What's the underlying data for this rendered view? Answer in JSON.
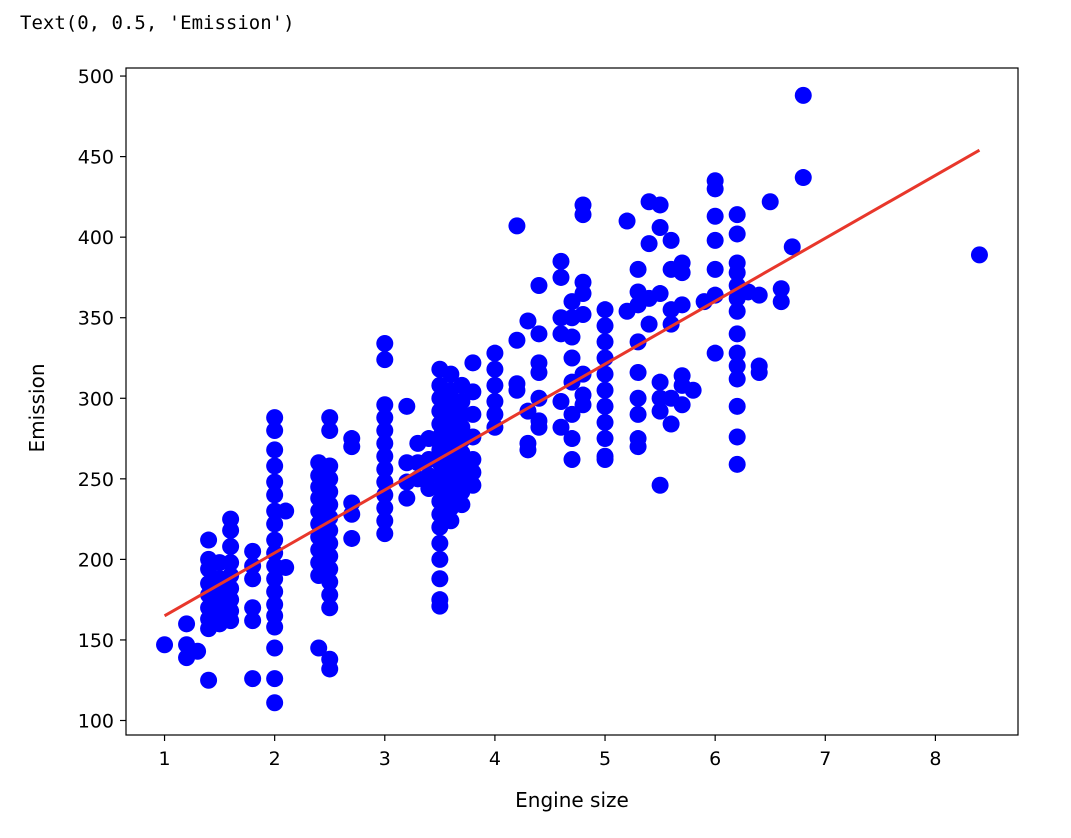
{
  "output_text": "Text(0, 0.5, 'Emission')",
  "chart_data": {
    "type": "scatter",
    "xlabel": "Engine size",
    "ylabel": "Emission",
    "xlim": [
      0.65,
      8.75
    ],
    "ylim": [
      91,
      505
    ],
    "xticks": [
      1,
      2,
      3,
      4,
      5,
      6,
      7,
      8
    ],
    "yticks": [
      100,
      150,
      200,
      250,
      300,
      350,
      400,
      450,
      500
    ],
    "colors": {
      "points": "#0000ff",
      "fit_line": "#e8372b"
    },
    "fit_line": {
      "x": [
        1.0,
        8.4
      ],
      "y": [
        165,
        454
      ]
    },
    "points": [
      [
        1.0,
        147
      ],
      [
        1.2,
        160
      ],
      [
        1.2,
        147
      ],
      [
        1.2,
        139
      ],
      [
        1.3,
        143
      ],
      [
        1.4,
        212
      ],
      [
        1.4,
        200
      ],
      [
        1.4,
        194
      ],
      [
        1.4,
        185
      ],
      [
        1.4,
        178
      ],
      [
        1.4,
        170
      ],
      [
        1.4,
        163
      ],
      [
        1.4,
        157
      ],
      [
        1.4,
        125
      ],
      [
        1.5,
        198
      ],
      [
        1.5,
        188
      ],
      [
        1.5,
        180
      ],
      [
        1.5,
        172
      ],
      [
        1.5,
        165
      ],
      [
        1.5,
        160
      ],
      [
        1.6,
        225
      ],
      [
        1.6,
        218
      ],
      [
        1.6,
        208
      ],
      [
        1.6,
        198
      ],
      [
        1.6,
        190
      ],
      [
        1.6,
        182
      ],
      [
        1.6,
        175
      ],
      [
        1.6,
        168
      ],
      [
        1.6,
        162
      ],
      [
        1.8,
        205
      ],
      [
        1.8,
        196
      ],
      [
        1.8,
        188
      ],
      [
        1.8,
        170
      ],
      [
        1.8,
        162
      ],
      [
        1.8,
        126
      ],
      [
        2.0,
        288
      ],
      [
        2.0,
        280
      ],
      [
        2.0,
        268
      ],
      [
        2.0,
        258
      ],
      [
        2.0,
        248
      ],
      [
        2.0,
        240
      ],
      [
        2.0,
        230
      ],
      [
        2.0,
        222
      ],
      [
        2.0,
        212
      ],
      [
        2.0,
        204
      ],
      [
        2.0,
        196
      ],
      [
        2.0,
        188
      ],
      [
        2.0,
        180
      ],
      [
        2.0,
        172
      ],
      [
        2.0,
        165
      ],
      [
        2.0,
        158
      ],
      [
        2.0,
        145
      ],
      [
        2.0,
        126
      ],
      [
        2.0,
        111
      ],
      [
        2.1,
        230
      ],
      [
        2.1,
        195
      ],
      [
        2.4,
        260
      ],
      [
        2.4,
        252
      ],
      [
        2.4,
        245
      ],
      [
        2.4,
        238
      ],
      [
        2.4,
        230
      ],
      [
        2.4,
        222
      ],
      [
        2.4,
        214
      ],
      [
        2.4,
        206
      ],
      [
        2.4,
        198
      ],
      [
        2.4,
        190
      ],
      [
        2.4,
        145
      ],
      [
        2.5,
        288
      ],
      [
        2.5,
        280
      ],
      [
        2.5,
        258
      ],
      [
        2.5,
        250
      ],
      [
        2.5,
        242
      ],
      [
        2.5,
        234
      ],
      [
        2.5,
        226
      ],
      [
        2.5,
        218
      ],
      [
        2.5,
        210
      ],
      [
        2.5,
        202
      ],
      [
        2.5,
        194
      ],
      [
        2.5,
        186
      ],
      [
        2.5,
        178
      ],
      [
        2.5,
        170
      ],
      [
        2.5,
        138
      ],
      [
        2.5,
        132
      ],
      [
        2.7,
        275
      ],
      [
        2.7,
        270
      ],
      [
        2.7,
        235
      ],
      [
        2.7,
        228
      ],
      [
        2.7,
        213
      ],
      [
        3.0,
        334
      ],
      [
        3.0,
        324
      ],
      [
        3.0,
        296
      ],
      [
        3.0,
        288
      ],
      [
        3.0,
        280
      ],
      [
        3.0,
        272
      ],
      [
        3.0,
        264
      ],
      [
        3.0,
        256
      ],
      [
        3.0,
        248
      ],
      [
        3.0,
        240
      ],
      [
        3.0,
        232
      ],
      [
        3.0,
        224
      ],
      [
        3.0,
        216
      ],
      [
        3.2,
        295
      ],
      [
        3.2,
        260
      ],
      [
        3.2,
        248
      ],
      [
        3.2,
        238
      ],
      [
        3.3,
        272
      ],
      [
        3.3,
        260
      ],
      [
        3.3,
        250
      ],
      [
        3.4,
        275
      ],
      [
        3.4,
        262
      ],
      [
        3.4,
        252
      ],
      [
        3.4,
        244
      ],
      [
        3.5,
        318
      ],
      [
        3.5,
        308
      ],
      [
        3.5,
        300
      ],
      [
        3.5,
        292
      ],
      [
        3.5,
        284
      ],
      [
        3.5,
        276
      ],
      [
        3.5,
        268
      ],
      [
        3.5,
        260
      ],
      [
        3.5,
        252
      ],
      [
        3.5,
        244
      ],
      [
        3.5,
        236
      ],
      [
        3.5,
        228
      ],
      [
        3.5,
        220
      ],
      [
        3.5,
        210
      ],
      [
        3.5,
        200
      ],
      [
        3.5,
        188
      ],
      [
        3.5,
        175
      ],
      [
        3.5,
        171
      ],
      [
        3.6,
        315
      ],
      [
        3.6,
        305
      ],
      [
        3.6,
        296
      ],
      [
        3.6,
        288
      ],
      [
        3.6,
        280
      ],
      [
        3.6,
        272
      ],
      [
        3.6,
        264
      ],
      [
        3.6,
        256
      ],
      [
        3.6,
        248
      ],
      [
        3.6,
        240
      ],
      [
        3.6,
        232
      ],
      [
        3.6,
        224
      ],
      [
        3.7,
        308
      ],
      [
        3.7,
        298
      ],
      [
        3.7,
        290
      ],
      [
        3.7,
        282
      ],
      [
        3.7,
        274
      ],
      [
        3.7,
        266
      ],
      [
        3.7,
        258
      ],
      [
        3.7,
        250
      ],
      [
        3.7,
        242
      ],
      [
        3.7,
        234
      ],
      [
        3.8,
        322
      ],
      [
        3.8,
        304
      ],
      [
        3.8,
        290
      ],
      [
        3.8,
        276
      ],
      [
        3.8,
        262
      ],
      [
        3.8,
        254
      ],
      [
        3.8,
        246
      ],
      [
        4.0,
        328
      ],
      [
        4.0,
        318
      ],
      [
        4.0,
        308
      ],
      [
        4.0,
        298
      ],
      [
        4.0,
        290
      ],
      [
        4.0,
        282
      ],
      [
        4.2,
        407
      ],
      [
        4.2,
        336
      ],
      [
        4.2,
        309
      ],
      [
        4.2,
        305
      ],
      [
        4.3,
        348
      ],
      [
        4.3,
        292
      ],
      [
        4.3,
        272
      ],
      [
        4.3,
        268
      ],
      [
        4.4,
        370
      ],
      [
        4.4,
        340
      ],
      [
        4.4,
        322
      ],
      [
        4.4,
        316
      ],
      [
        4.4,
        300
      ],
      [
        4.4,
        286
      ],
      [
        4.4,
        282
      ],
      [
        4.6,
        385
      ],
      [
        4.6,
        375
      ],
      [
        4.6,
        350
      ],
      [
        4.6,
        340
      ],
      [
        4.6,
        298
      ],
      [
        4.6,
        282
      ],
      [
        4.7,
        360
      ],
      [
        4.7,
        350
      ],
      [
        4.7,
        338
      ],
      [
        4.7,
        325
      ],
      [
        4.7,
        310
      ],
      [
        4.7,
        290
      ],
      [
        4.7,
        275
      ],
      [
        4.7,
        262
      ],
      [
        4.8,
        420
      ],
      [
        4.8,
        414
      ],
      [
        4.8,
        372
      ],
      [
        4.8,
        365
      ],
      [
        4.8,
        352
      ],
      [
        4.8,
        315
      ],
      [
        4.8,
        302
      ],
      [
        4.8,
        296
      ],
      [
        5.0,
        355
      ],
      [
        5.0,
        345
      ],
      [
        5.0,
        335
      ],
      [
        5.0,
        325
      ],
      [
        5.0,
        315
      ],
      [
        5.0,
        305
      ],
      [
        5.0,
        295
      ],
      [
        5.0,
        285
      ],
      [
        5.0,
        275
      ],
      [
        5.0,
        264
      ],
      [
        5.0,
        262
      ],
      [
        5.2,
        410
      ],
      [
        5.2,
        354
      ],
      [
        5.3,
        380
      ],
      [
        5.3,
        366
      ],
      [
        5.3,
        358
      ],
      [
        5.3,
        335
      ],
      [
        5.3,
        316
      ],
      [
        5.3,
        300
      ],
      [
        5.3,
        290
      ],
      [
        5.3,
        275
      ],
      [
        5.3,
        270
      ],
      [
        5.4,
        422
      ],
      [
        5.4,
        396
      ],
      [
        5.4,
        362
      ],
      [
        5.4,
        346
      ],
      [
        5.5,
        420
      ],
      [
        5.5,
        406
      ],
      [
        5.5,
        365
      ],
      [
        5.5,
        310
      ],
      [
        5.5,
        300
      ],
      [
        5.5,
        292
      ],
      [
        5.5,
        246
      ],
      [
        5.6,
        398
      ],
      [
        5.6,
        380
      ],
      [
        5.6,
        355
      ],
      [
        5.6,
        346
      ],
      [
        5.6,
        300
      ],
      [
        5.6,
        284
      ],
      [
        5.7,
        384
      ],
      [
        5.7,
        378
      ],
      [
        5.7,
        358
      ],
      [
        5.7,
        314
      ],
      [
        5.7,
        308
      ],
      [
        5.7,
        296
      ],
      [
        5.8,
        305
      ],
      [
        5.9,
        360
      ],
      [
        6.0,
        435
      ],
      [
        6.0,
        430
      ],
      [
        6.0,
        413
      ],
      [
        6.0,
        398
      ],
      [
        6.0,
        380
      ],
      [
        6.0,
        364
      ],
      [
        6.0,
        328
      ],
      [
        6.2,
        414
      ],
      [
        6.2,
        402
      ],
      [
        6.2,
        384
      ],
      [
        6.2,
        378
      ],
      [
        6.2,
        370
      ],
      [
        6.2,
        362
      ],
      [
        6.2,
        354
      ],
      [
        6.2,
        340
      ],
      [
        6.2,
        328
      ],
      [
        6.2,
        320
      ],
      [
        6.2,
        312
      ],
      [
        6.2,
        295
      ],
      [
        6.2,
        276
      ],
      [
        6.2,
        259
      ],
      [
        6.3,
        366
      ],
      [
        6.4,
        364
      ],
      [
        6.4,
        320
      ],
      [
        6.4,
        316
      ],
      [
        6.5,
        422
      ],
      [
        6.6,
        368
      ],
      [
        6.6,
        360
      ],
      [
        6.7,
        394
      ],
      [
        6.8,
        488
      ],
      [
        6.8,
        437
      ],
      [
        8.4,
        389
      ]
    ]
  }
}
